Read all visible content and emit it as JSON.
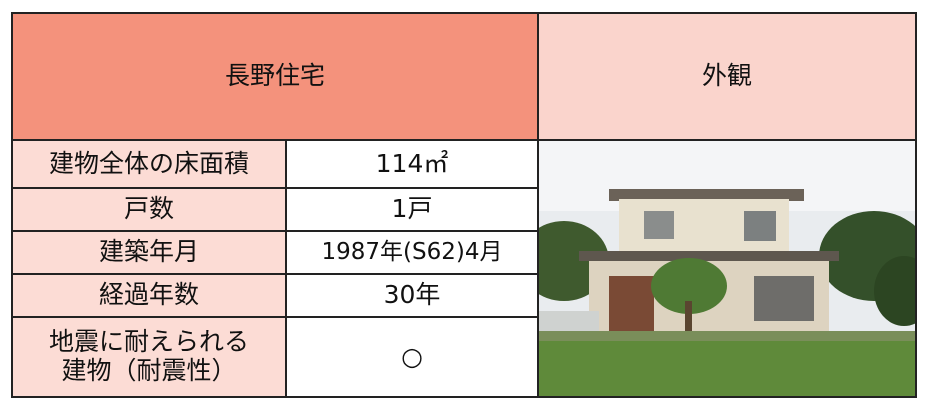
{
  "header": {
    "title": "長野住宅",
    "photo_label": "外観"
  },
  "rows": [
    {
      "label": "建物全体の床面積",
      "value": "114㎡"
    },
    {
      "label": "戸数",
      "value": "1戸"
    },
    {
      "label": "建築年月",
      "value": "1987年(S62)4月"
    },
    {
      "label": "経過年数",
      "value": "30年"
    },
    {
      "label": "地震に耐えられる\n建物（耐震性）",
      "value": "○"
    }
  ]
}
